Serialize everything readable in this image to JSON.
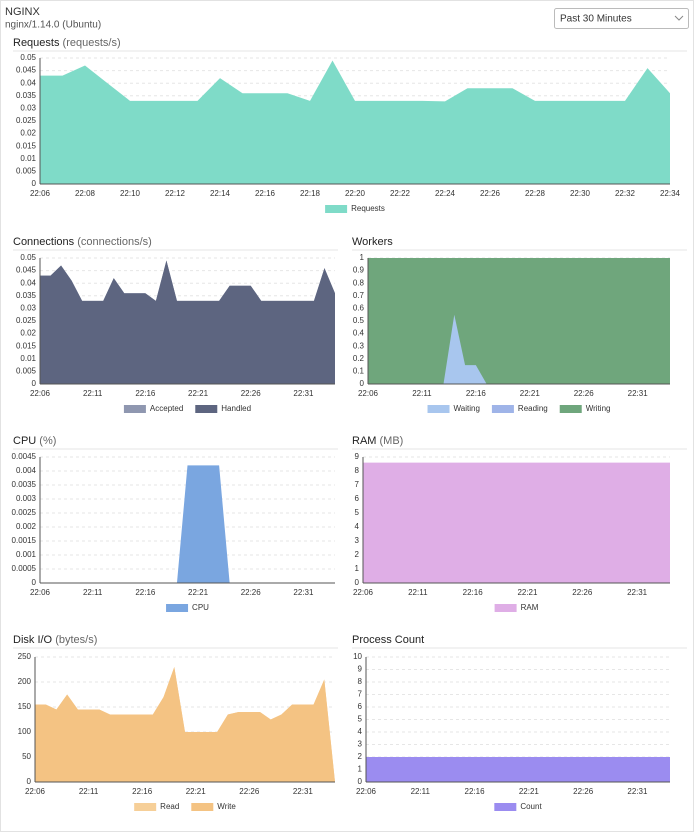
{
  "header": {
    "title": "NGINX",
    "subtitle": "nginx/1.14.0 (Ubuntu)",
    "time_range": "Past 30 Minutes"
  },
  "chart_data": [
    {
      "type": "area",
      "title": "Requests",
      "unit": "(requests/s)",
      "categories": [
        "22:06",
        null,
        "22:08",
        null,
        "22:10",
        null,
        "22:12",
        null,
        "22:14",
        null,
        "22:16",
        null,
        "22:18",
        null,
        "22:20",
        null,
        "22:22",
        null,
        "22:24",
        null,
        "22:26",
        null,
        "22:28",
        null,
        "22:30",
        null,
        "22:32",
        null,
        "22:34"
      ],
      "series": [
        {
          "name": "Requests",
          "color": "#7fdbc8",
          "values": [
            0.043,
            0.043,
            0.047,
            0.04,
            0.033,
            0.033,
            0.033,
            0.033,
            0.042,
            0.036,
            0.036,
            0.036,
            0.033,
            0.049,
            0.033,
            0.033,
            0.033,
            0.033,
            0.0328,
            0.038,
            0.038,
            0.038,
            0.033,
            0.033,
            0.033,
            0.033,
            0.033,
            0.046,
            0.036
          ]
        }
      ],
      "ylim": [
        0,
        0.05
      ],
      "yticks": [
        0,
        0.005,
        0.01,
        0.015,
        0.02,
        0.025,
        0.03,
        0.035,
        0.04,
        0.045,
        0.05
      ],
      "grid": true
    },
    {
      "type": "area",
      "title": "Connections",
      "unit": "(connections/s)",
      "categories": [
        "22:06",
        null,
        null,
        null,
        null,
        "22:11",
        null,
        null,
        null,
        null,
        "22:16",
        null,
        null,
        null,
        null,
        "22:21",
        null,
        null,
        null,
        null,
        "22:26",
        null,
        null,
        null,
        null,
        "22:31",
        null,
        null,
        null
      ],
      "series": [
        {
          "name": "Accepted",
          "color": "#8f97b0",
          "values": [
            0.043,
            0.043,
            0.047,
            0.041,
            0.033,
            0.033,
            0.033,
            0.042,
            0.036,
            0.036,
            0.036,
            0.033,
            0.049,
            0.033,
            0.033,
            0.033,
            0.033,
            0.033,
            0.039,
            0.039,
            0.039,
            0.033,
            0.033,
            0.033,
            0.033,
            0.033,
            0.033,
            0.046,
            0.036
          ]
        },
        {
          "name": "Handled",
          "color": "#5d6580",
          "values": [
            0.043,
            0.043,
            0.047,
            0.041,
            0.033,
            0.033,
            0.033,
            0.042,
            0.036,
            0.036,
            0.036,
            0.033,
            0.049,
            0.033,
            0.033,
            0.033,
            0.033,
            0.033,
            0.039,
            0.039,
            0.039,
            0.033,
            0.033,
            0.033,
            0.033,
            0.033,
            0.033,
            0.046,
            0.036
          ]
        }
      ],
      "ylim": [
        0,
        0.05
      ],
      "yticks": [
        0,
        0.005,
        0.01,
        0.015,
        0.02,
        0.025,
        0.03,
        0.035,
        0.04,
        0.045,
        0.05
      ],
      "grid": true
    },
    {
      "type": "area",
      "title": "Workers",
      "categories": [
        "22:06",
        null,
        null,
        null,
        null,
        "22:11",
        null,
        null,
        null,
        null,
        "22:16",
        null,
        null,
        null,
        null,
        "22:21",
        null,
        null,
        null,
        null,
        "22:26",
        null,
        null,
        null,
        null,
        "22:31",
        null,
        null,
        null
      ],
      "series": [
        {
          "name": "Waiting",
          "color": "#a8c6ee",
          "values": [
            0,
            0,
            0,
            0,
            0,
            0,
            0,
            0,
            0.55,
            0.15,
            0.15,
            0,
            0,
            0,
            0,
            0,
            0,
            0,
            0,
            0,
            0,
            0,
            0,
            0,
            0,
            0,
            0,
            0,
            0
          ]
        },
        {
          "name": "Reading",
          "color": "#9fb4e8",
          "values": [
            0,
            0,
            0,
            0,
            0,
            0,
            0,
            0,
            0,
            0,
            0,
            0,
            0,
            0,
            0,
            0,
            0,
            0,
            0,
            0,
            0,
            0,
            0,
            0,
            0,
            0,
            0,
            0,
            0
          ]
        },
        {
          "name": "Writing",
          "color": "#6fa67c",
          "values": [
            1,
            1,
            1,
            1,
            1,
            1,
            1,
            1,
            1,
            1,
            1,
            1,
            1,
            1,
            1,
            1,
            1,
            1,
            1,
            1,
            1,
            1,
            1,
            1,
            1,
            1,
            1,
            1,
            1
          ]
        }
      ],
      "ylim": [
        0,
        1
      ],
      "yticks": [
        0,
        0.1,
        0.2,
        0.3,
        0.4,
        0.5,
        0.6,
        0.7,
        0.8,
        0.9,
        1
      ],
      "grid": true
    },
    {
      "type": "area",
      "title": "CPU",
      "unit": "(%)",
      "categories": [
        "22:06",
        null,
        null,
        null,
        null,
        "22:11",
        null,
        null,
        null,
        null,
        "22:16",
        null,
        null,
        null,
        null,
        "22:21",
        null,
        null,
        null,
        null,
        "22:26",
        null,
        null,
        null,
        null,
        "22:31",
        null,
        null,
        null
      ],
      "series": [
        {
          "name": "CPU",
          "color": "#7aa6e0",
          "values": [
            0,
            0,
            0,
            0,
            0,
            0,
            0,
            0,
            0,
            0,
            0,
            0,
            0,
            0,
            0.0042,
            0.0042,
            0.0042,
            0.0042,
            0,
            0,
            0,
            0,
            0,
            0,
            0,
            0,
            0,
            0,
            0
          ]
        }
      ],
      "ylim": [
        0,
        0.0045
      ],
      "yticks": [
        0,
        0.0005,
        0.001,
        0.0015,
        0.002,
        0.0025,
        0.003,
        0.0035,
        0.004,
        0.0045
      ],
      "grid": true
    },
    {
      "type": "area",
      "title": "RAM",
      "unit": "(MB)",
      "categories": [
        "22:06",
        null,
        null,
        null,
        null,
        "22:11",
        null,
        null,
        null,
        null,
        "22:16",
        null,
        null,
        null,
        null,
        "22:21",
        null,
        null,
        null,
        null,
        "22:26",
        null,
        null,
        null,
        null,
        "22:31",
        null,
        null,
        null
      ],
      "series": [
        {
          "name": "RAM",
          "color": "#dfaee6",
          "values": [
            8.6,
            8.6,
            8.6,
            8.6,
            8.6,
            8.6,
            8.6,
            8.6,
            8.6,
            8.6,
            8.6,
            8.6,
            8.6,
            8.6,
            8.6,
            8.6,
            8.6,
            8.6,
            8.6,
            8.6,
            8.6,
            8.6,
            8.6,
            8.6,
            8.6,
            8.6,
            8.6,
            8.6,
            8.6
          ]
        }
      ],
      "ylim": [
        0,
        9
      ],
      "yticks": [
        0,
        1,
        2,
        3,
        4,
        5,
        6,
        7,
        8,
        9
      ],
      "grid": true
    },
    {
      "type": "area",
      "title": "Disk I/O",
      "unit": "(bytes/s)",
      "categories": [
        "22:06",
        null,
        null,
        null,
        null,
        "22:11",
        null,
        null,
        null,
        null,
        "22:16",
        null,
        null,
        null,
        null,
        "22:21",
        null,
        null,
        null,
        null,
        "22:26",
        null,
        null,
        null,
        null,
        "22:31",
        null,
        null,
        null
      ],
      "series": [
        {
          "name": "Read",
          "color": "#f6cf98",
          "values": [
            155,
            155,
            145,
            175,
            145,
            145,
            145,
            135,
            135,
            135,
            135,
            135,
            170,
            230,
            100,
            100,
            100,
            100,
            135,
            140,
            140,
            140,
            125,
            135,
            155,
            155,
            155,
            205,
            0
          ]
        },
        {
          "name": "Write",
          "color": "#f4c383",
          "values": [
            155,
            155,
            145,
            175,
            145,
            145,
            145,
            135,
            135,
            135,
            135,
            135,
            170,
            230,
            100,
            100,
            100,
            100,
            135,
            140,
            140,
            140,
            125,
            135,
            155,
            155,
            155,
            205,
            0
          ]
        }
      ],
      "ylim": [
        0,
        250
      ],
      "yticks": [
        0,
        50,
        100,
        150,
        200,
        250
      ],
      "grid": true
    },
    {
      "type": "area",
      "title": "Process Count",
      "categories": [
        "22:06",
        null,
        null,
        null,
        null,
        "22:11",
        null,
        null,
        null,
        null,
        "22:16",
        null,
        null,
        null,
        null,
        "22:21",
        null,
        null,
        null,
        null,
        "22:26",
        null,
        null,
        null,
        null,
        "22:31",
        null,
        null,
        null
      ],
      "series": [
        {
          "name": "Count",
          "color": "#9b8cf0",
          "values": [
            2,
            2,
            2,
            2,
            2,
            2,
            2,
            2,
            2,
            2,
            2,
            2,
            2,
            2,
            2,
            2,
            2,
            2,
            2,
            2,
            2,
            2,
            2,
            2,
            2,
            2,
            2,
            2,
            2
          ]
        }
      ],
      "ylim": [
        0,
        10
      ],
      "yticks": [
        0,
        1,
        2,
        3,
        4,
        5,
        6,
        7,
        8,
        9,
        10
      ],
      "grid": true
    }
  ]
}
